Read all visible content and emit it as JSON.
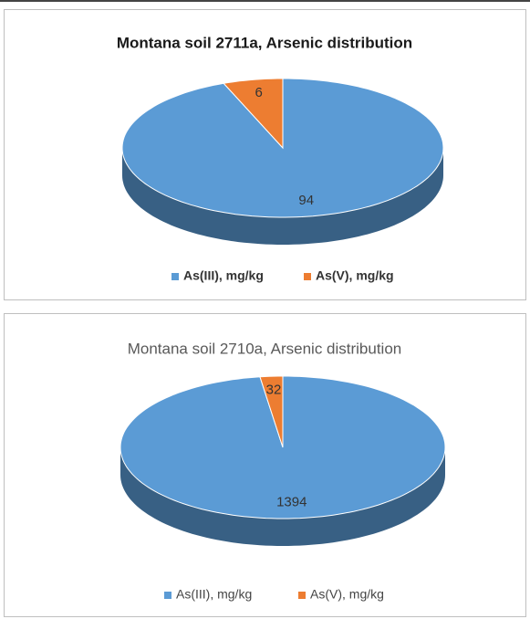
{
  "chart_data": [
    {
      "type": "pie",
      "title": "Montana soil 2711a, Arsenic distribution",
      "categories": [
        "As(III), mg/kg",
        "As(V), mg/kg"
      ],
      "values": [
        94,
        6
      ],
      "colors": [
        "#5b9bd5",
        "#ed7d31"
      ]
    },
    {
      "type": "pie",
      "title": "Montana soil 2710a, Arsenic distribution",
      "categories": [
        "As(III), mg/kg",
        "As(V), mg/kg"
      ],
      "values": [
        1394,
        32
      ],
      "colors": [
        "#5b9bd5",
        "#ed7d31"
      ]
    }
  ]
}
